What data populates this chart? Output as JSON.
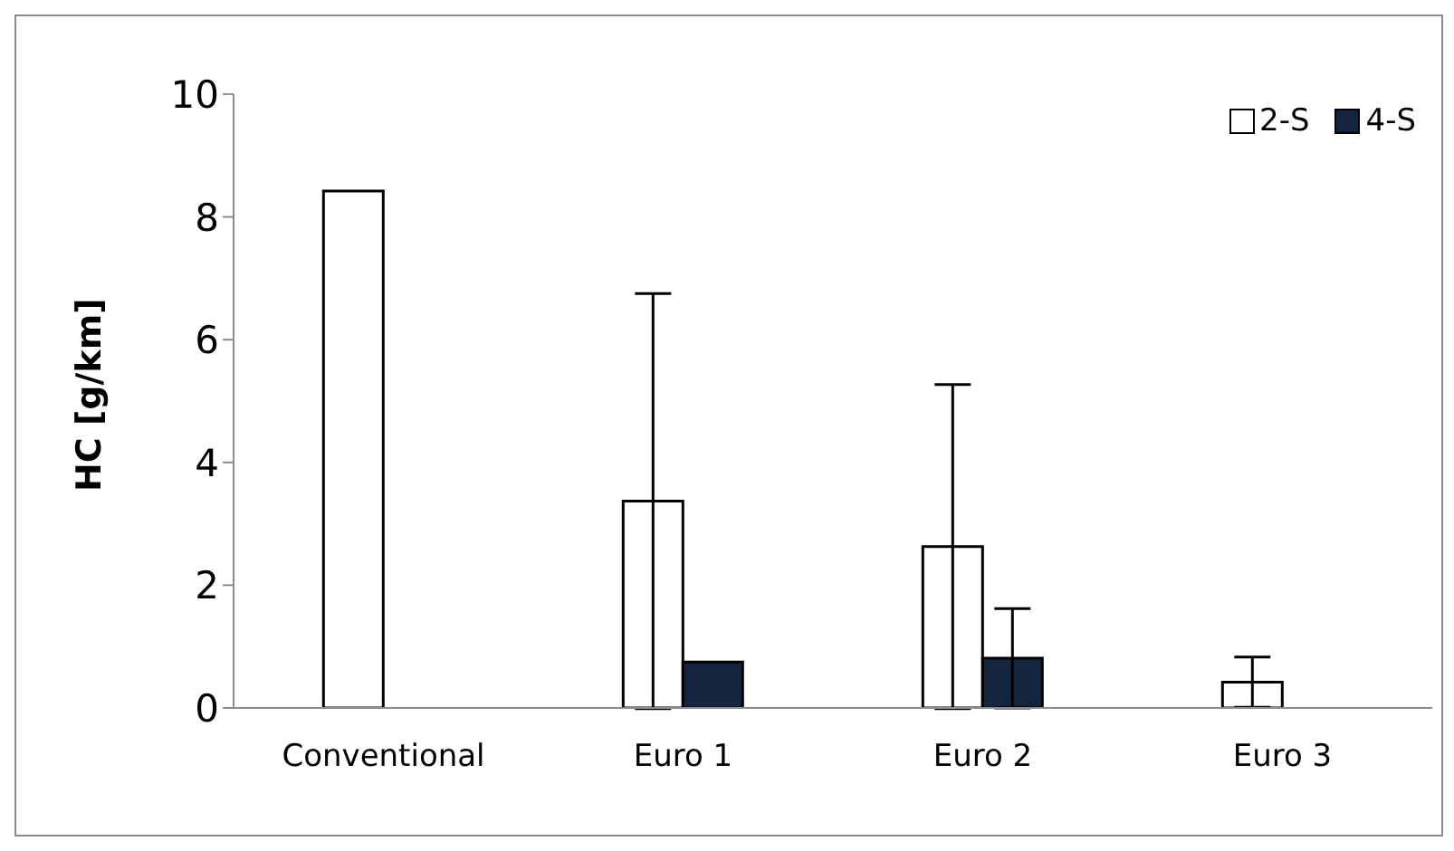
{
  "chart_data": {
    "type": "bar",
    "ylabel": "HC [g/km]",
    "categories": [
      "Conventional",
      "Euro 1",
      "Euro 2",
      "Euro 3"
    ],
    "series": [
      {
        "name": "2-S",
        "color": "#ffffff",
        "values": [
          8.42,
          3.37,
          2.63,
          0.42
        ],
        "errors": [
          null,
          3.38,
          2.64,
          0.41
        ]
      },
      {
        "name": "4-S",
        "color": "#14263f",
        "values": [
          null,
          0.75,
          0.81,
          null
        ],
        "errors": [
          null,
          null,
          0.81,
          null
        ]
      }
    ],
    "ylim": [
      0,
      10
    ],
    "yticks": [
      0,
      2,
      4,
      6,
      8,
      10
    ],
    "grid": false,
    "legend": "top right"
  }
}
